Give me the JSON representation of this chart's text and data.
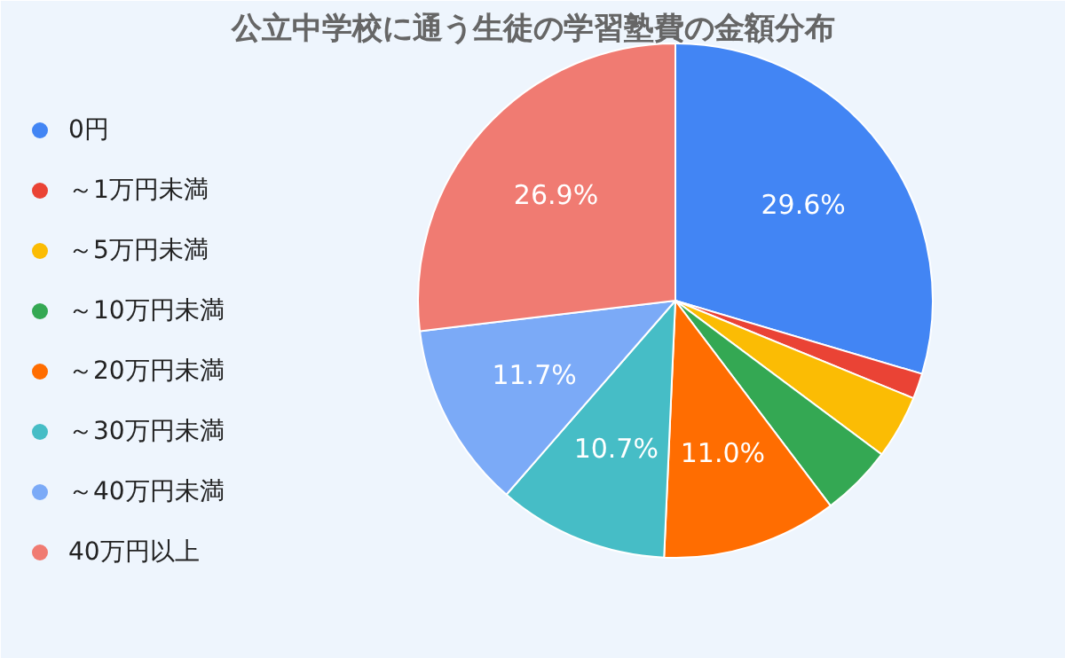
{
  "chart_data": {
    "type": "pie",
    "title": "公立中学校に通う生徒の学習塾費の金額分布",
    "categories": [
      "0円",
      "～1万円未満",
      "～5万円未満",
      "～10万円未満",
      "～20万円未満",
      "～30万円未満",
      "～40万円未満",
      "40万円以上"
    ],
    "values": [
      29.6,
      1.6,
      4.0,
      4.5,
      11.0,
      10.7,
      11.7,
      26.9
    ],
    "colors": [
      "#4285f4",
      "#ea4335",
      "#fbbc04",
      "#34a853",
      "#ff6d01",
      "#46bdc6",
      "#7baaf7",
      "#f07b72"
    ],
    "value_labels": [
      "29.6%",
      null,
      null,
      null,
      "11.0%",
      "10.7%",
      "11.7%",
      "26.9%"
    ],
    "legend": "left"
  }
}
